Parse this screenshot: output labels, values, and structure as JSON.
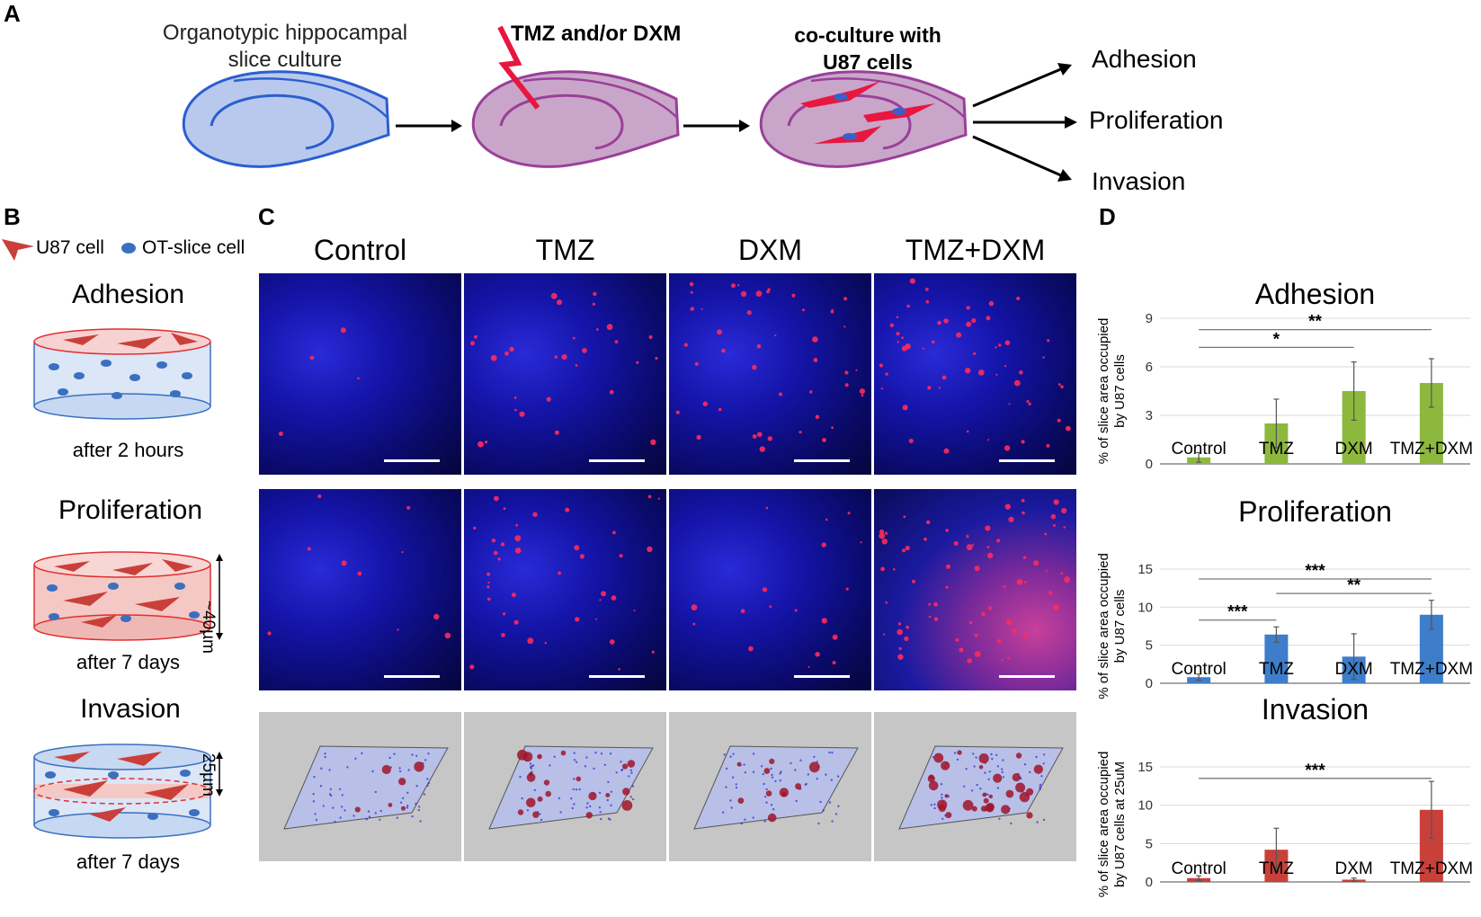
{
  "panel_letters": {
    "a": "A",
    "b": "B",
    "c": "C",
    "d": "D"
  },
  "panel_a": {
    "step1": [
      "Organotypic hippocampal",
      "slice culture"
    ],
    "step2": "TMZ and/or DXM",
    "step3": [
      "co-culture with",
      "U87 cells"
    ],
    "outcomes": [
      "Adhesion",
      "Proliferation",
      "Invasion"
    ],
    "colors": {
      "slice1": "#b9c9ee",
      "slice2": "#c9a6c9",
      "bolt": "#e8173f",
      "u87": "#e8173f"
    }
  },
  "panel_b": {
    "legend": {
      "u87": "U87 cell",
      "ot": "OT-slice cell"
    },
    "assays": [
      {
        "title": "Adhesion",
        "time": "after 2 hours"
      },
      {
        "title": "Proliferation",
        "time": "after 7 days",
        "depth": "~40µm"
      },
      {
        "title": "Invasion",
        "time": "after 7 days",
        "depth": "25µm"
      }
    ]
  },
  "panel_c": {
    "columns": [
      "Control",
      "TMZ",
      "DXM",
      "TMZ+DXM"
    ],
    "row_types": [
      "adhesion-image",
      "proliferation-image",
      "invasion-3d"
    ]
  },
  "panel_d": {
    "charts": [
      {
        "title": "Adhesion",
        "ylabel": [
          "% of slice area occupied",
          "by U87 cells"
        ],
        "color": "#8db83e"
      },
      {
        "title": "Proliferation",
        "ylabel": [
          "% of slice area occupied",
          "by U87 cells"
        ],
        "color": "#3e7dc9"
      },
      {
        "title": "Invasion",
        "ylabel": [
          "% of slice area occupied",
          "by U87 cells at 25uM"
        ],
        "color": "#c9403a"
      }
    ]
  },
  "chart_data": [
    {
      "type": "bar",
      "title": "Adhesion",
      "categories": [
        "Control",
        "TMZ",
        "DXM",
        "TMZ+DXM"
      ],
      "values": [
        0.4,
        2.5,
        4.5,
        5.0
      ],
      "errors": [
        0.3,
        1.5,
        1.8,
        1.5
      ],
      "ylim": [
        0,
        9
      ],
      "yticks": [
        0,
        3,
        6,
        9
      ],
      "ylabel": "% of slice area occupied by U87 cells",
      "significance": [
        {
          "from": "Control",
          "to": "DXM",
          "label": "*"
        },
        {
          "from": "Control",
          "to": "TMZ+DXM",
          "label": "**"
        }
      ]
    },
    {
      "type": "bar",
      "title": "Proliferation",
      "categories": [
        "Control",
        "TMZ",
        "DXM",
        "TMZ+DXM"
      ],
      "values": [
        0.8,
        6.4,
        3.5,
        9.0
      ],
      "errors": [
        0.4,
        1.0,
        3.0,
        1.9
      ],
      "ylim": [
        0,
        15
      ],
      "yticks": [
        0,
        5,
        10,
        15
      ],
      "ylabel": "% of slice area occupied by U87 cells",
      "significance": [
        {
          "from": "Control",
          "to": "TMZ+DXM",
          "label": "***"
        },
        {
          "from": "TMZ",
          "to": "TMZ+DXM",
          "label": "**"
        },
        {
          "from": "Control",
          "to": "TMZ",
          "label": "***"
        }
      ]
    },
    {
      "type": "bar",
      "title": "Invasion",
      "categories": [
        "Control",
        "TMZ",
        "DXM",
        "TMZ+DXM"
      ],
      "values": [
        0.5,
        4.2,
        0.3,
        9.4
      ],
      "errors": [
        0.3,
        2.8,
        0.2,
        3.7
      ],
      "ylim": [
        0,
        15
      ],
      "yticks": [
        0,
        5,
        10,
        15
      ],
      "ylabel": "% of slice area occupied by U87 cells at 25uM",
      "significance": [
        {
          "from": "Control",
          "to": "TMZ+DXM",
          "label": "***"
        }
      ]
    }
  ]
}
